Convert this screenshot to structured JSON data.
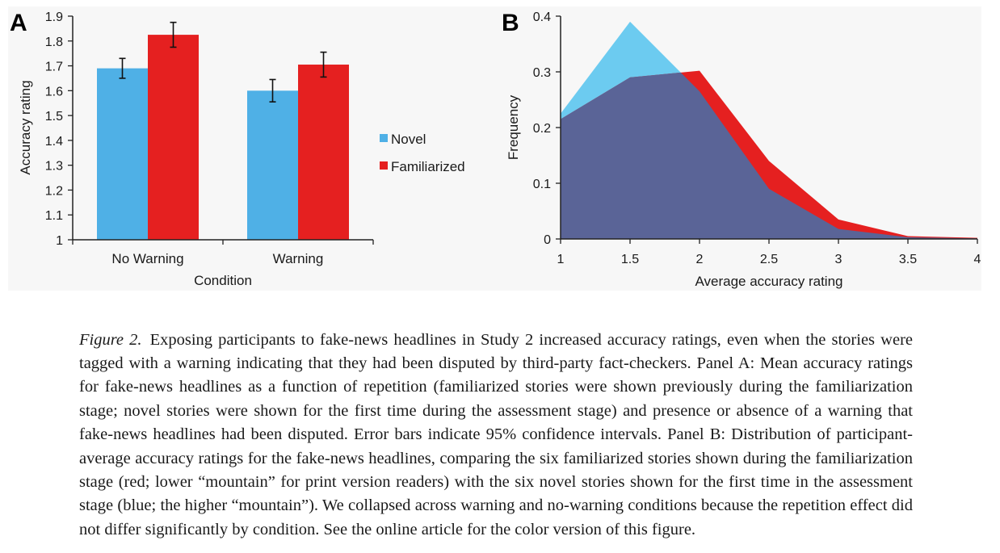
{
  "panel_a": {
    "letter": "A",
    "ticks_y": [
      "1",
      "1.1",
      "1.2",
      "1.3",
      "1.4",
      "1.5",
      "1.6",
      "1.7",
      "1.8",
      "1.9"
    ],
    "legend": [
      {
        "label": "Novel",
        "color": "#4fb0e6"
      },
      {
        "label": "Familiarized",
        "color": "#e52020"
      }
    ]
  },
  "panel_b": {
    "letter": "B",
    "ticks_y": [
      "0",
      "0.1",
      "0.2",
      "0.3",
      "0.4"
    ],
    "ticks_x": [
      "1",
      "1.5",
      "2",
      "2.5",
      "3",
      "3.5",
      "4"
    ]
  },
  "chart_data": [
    {
      "type": "bar",
      "title": "",
      "xlabel": "Condition",
      "ylabel": "Accuracy rating",
      "categories": [
        "No Warning",
        "Warning"
      ],
      "ylim": [
        1,
        1.9
      ],
      "series": [
        {
          "name": "Novel",
          "color": "#4fb0e6",
          "values": [
            1.69,
            1.6
          ],
          "errors": [
            0.04,
            0.045
          ]
        },
        {
          "name": "Familiarized",
          "color": "#e52020",
          "values": [
            1.825,
            1.705
          ],
          "errors": [
            0.05,
            0.05
          ]
        }
      ],
      "legend_position": "right"
    },
    {
      "type": "area",
      "title": "",
      "xlabel": "Average accuracy rating",
      "ylabel": "Frequency",
      "xlim": [
        1,
        4
      ],
      "ylim": [
        0,
        0.4
      ],
      "x": [
        1,
        1.5,
        2,
        2.5,
        3,
        3.5,
        4
      ],
      "series": [
        {
          "name": "Novel",
          "color": "#6ccbf0",
          "values": [
            0.225,
            0.39,
            0.265,
            0.09,
            0.018,
            0.003,
            0.001
          ]
        },
        {
          "name": "Familiarized",
          "color": "#e52020",
          "values": [
            0.215,
            0.29,
            0.302,
            0.14,
            0.035,
            0.005,
            0.002
          ]
        }
      ],
      "overlap_color": "#5a6497"
    }
  ],
  "caption": {
    "label": "Figure 2.",
    "text": "Exposing participants to fake-news headlines in Study 2 increased accuracy ratings, even when the stories were tagged with a warning indicating that they had been disputed by third-party fact-checkers. Panel A: Mean accuracy ratings for fake-news headlines as a function of repetition (familiarized stories were shown previously during the familiarization stage; novel stories were shown for the first time during the assessment stage) and presence or absence of a warning that fake-news headlines had been disputed. Error bars indicate 95% confidence intervals. Panel B: Distribution of participant-average accuracy ratings for the fake-news headlines, comparing the six familiarized stories shown during the familiarization stage (red; lower “mountain” for print version readers) with the six novel stories shown for the first time in the assessment stage (blue; the higher “mountain”). We collapsed across warning and no-warning conditions because the repetition effect did not differ significantly by condition. See the online article for the color version of this figure."
  }
}
